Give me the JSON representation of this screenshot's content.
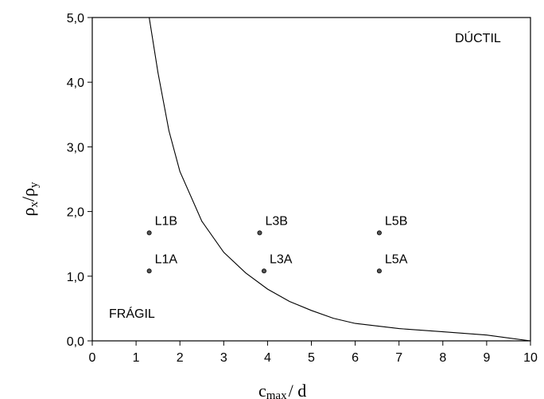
{
  "chart_data": {
    "type": "scatter",
    "xlabel_main": "c",
    "xlabel_sub": "max",
    "xlabel_rest": "/ d",
    "ylabel_part1": "ρ",
    "ylabel_sub1": "x",
    "ylabel_part2": "/ρ",
    "ylabel_sub2": "y",
    "xlim": [
      0,
      10
    ],
    "ylim": [
      0,
      5
    ],
    "x_ticks": [
      0,
      1,
      2,
      3,
      4,
      5,
      6,
      7,
      8,
      9,
      10
    ],
    "y_ticks": [
      "0,0",
      "1,0",
      "2,0",
      "3,0",
      "4,0",
      "5,0"
    ],
    "points": [
      {
        "label": "L1B",
        "x": 1.3,
        "y": 1.67
      },
      {
        "label": "L1A",
        "x": 1.3,
        "y": 1.08
      },
      {
        "label": "L3B",
        "x": 3.82,
        "y": 1.67
      },
      {
        "label": "L3A",
        "x": 3.92,
        "y": 1.08
      },
      {
        "label": "L5B",
        "x": 6.55,
        "y": 1.67
      },
      {
        "label": "L5A",
        "x": 6.55,
        "y": 1.08
      }
    ],
    "boundary_curve": {
      "x": [
        1.3,
        1.5,
        1.75,
        2.0,
        2.5,
        3.0,
        3.5,
        4.0,
        4.5,
        5.0,
        5.5,
        6.0,
        7.0,
        8.0,
        9.0,
        10.0
      ],
      "y": [
        5.0,
        4.15,
        3.25,
        2.62,
        1.85,
        1.37,
        1.05,
        0.8,
        0.61,
        0.47,
        0.35,
        0.27,
        0.19,
        0.14,
        0.09,
        0.0
      ]
    },
    "region_labels": {
      "upper": "DÚCTIL",
      "lower": "FRÁGIL"
    },
    "grid": false
  }
}
